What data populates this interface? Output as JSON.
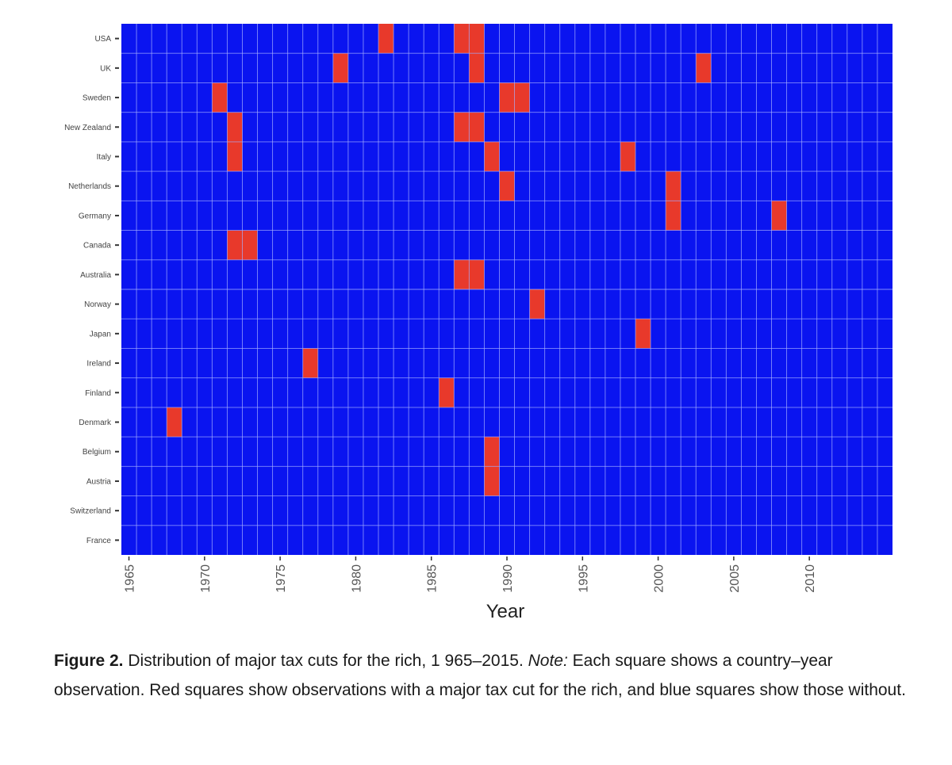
{
  "chart_data": {
    "type": "heatmap",
    "xlabel": "Year",
    "x_tick_labels": [
      "1965",
      "1970",
      "1975",
      "1980",
      "1985",
      "1990",
      "1995",
      "2000",
      "2005",
      "2010"
    ],
    "years": [
      1965,
      1966,
      1967,
      1968,
      1969,
      1970,
      1971,
      1972,
      1973,
      1974,
      1975,
      1976,
      1977,
      1978,
      1979,
      1980,
      1981,
      1982,
      1983,
      1984,
      1985,
      1986,
      1987,
      1988,
      1989,
      1990,
      1991,
      1992,
      1993,
      1994,
      1995,
      1996,
      1997,
      1998,
      1999,
      2000,
      2001,
      2002,
      2003,
      2004,
      2005,
      2006,
      2007,
      2008,
      2009,
      2010,
      2011,
      2012,
      2013,
      2014,
      2015
    ],
    "countries": [
      "USA",
      "UK",
      "Sweden",
      "New Zealand",
      "Italy",
      "Netherlands",
      "Germany",
      "Canada",
      "Australia",
      "Norway",
      "Japan",
      "Ireland",
      "Finland",
      "Denmark",
      "Belgium",
      "Austria",
      "Switzerland",
      "France"
    ],
    "tax_cut_years": {
      "USA": [
        1982,
        1987,
        1988
      ],
      "UK": [
        1979,
        1988,
        2003
      ],
      "Sweden": [
        1971,
        1990,
        1991
      ],
      "New Zealand": [
        1972,
        1987,
        1988
      ],
      "Italy": [
        1972,
        1989,
        1998
      ],
      "Netherlands": [
        1990,
        2001
      ],
      "Germany": [
        2001,
        2008
      ],
      "Canada": [
        1972,
        1973
      ],
      "Australia": [
        1987,
        1988
      ],
      "Norway": [
        1992
      ],
      "Japan": [
        1999
      ],
      "Ireland": [
        1977
      ],
      "Finland": [
        1986
      ],
      "Denmark": [
        1968
      ],
      "Belgium": [
        1989
      ],
      "Austria": [
        1989
      ],
      "Switzerland": [],
      "France": []
    },
    "colors": {
      "cut": "#e8392b",
      "no_cut": "#0a14f0",
      "grid": "#a8b2ff"
    },
    "grid": true,
    "legend": "none"
  },
  "caption": {
    "label": "Figure 2.",
    "text": " Distribution of major tax cuts for the rich, 1 965–2015. ",
    "note_label": "Note:",
    "note_text": " Each square shows a country–year observation. Red squares show observations with a major tax cut for the rich, and blue squares show those without."
  }
}
